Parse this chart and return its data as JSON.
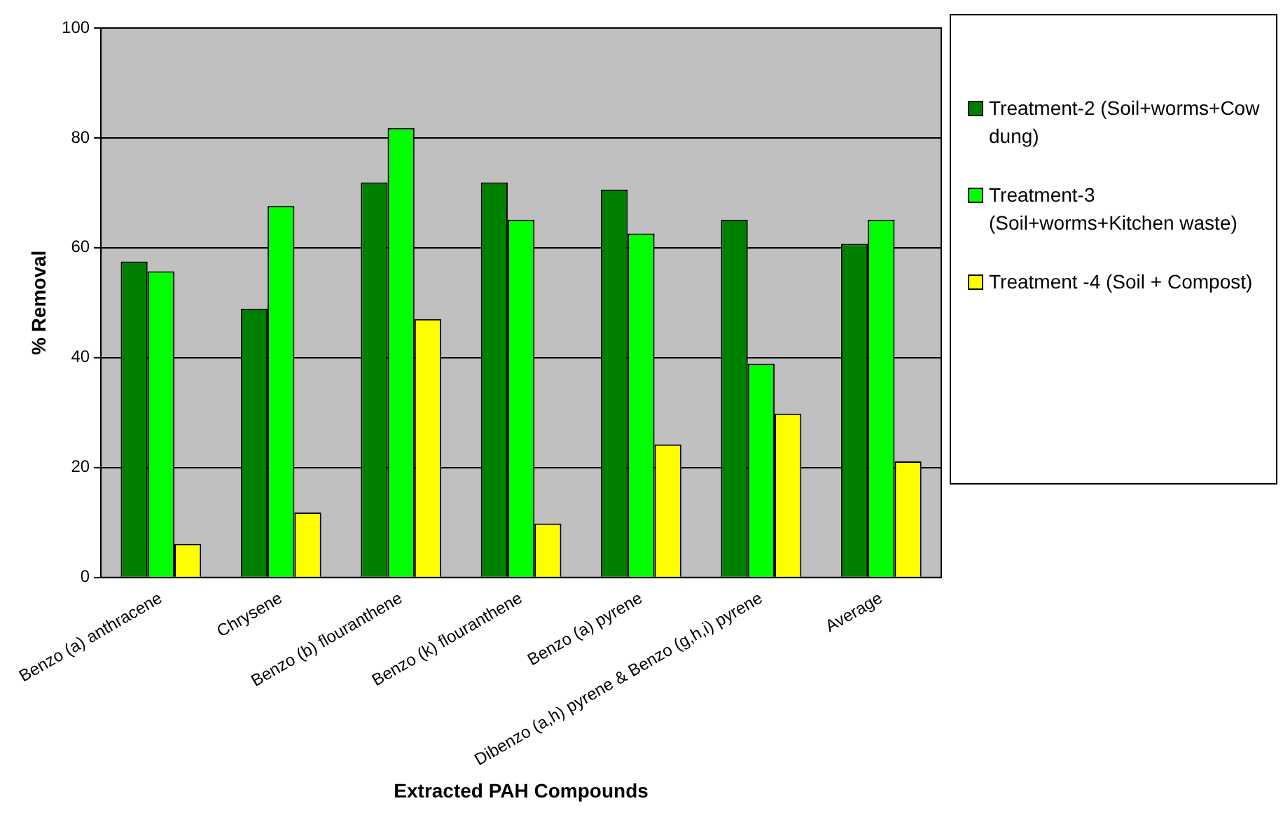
{
  "chart_data": {
    "type": "bar",
    "xlabel": "Extracted PAH Compounds",
    "ylabel": "% Removal",
    "categories": [
      "Benzo (a) anthracene",
      "Chrysene",
      "Benzo (b) flouranthene",
      "Benzo (k) flouranthene",
      "Benzo (a) pyrene",
      "Dibenzo (a,h) pyrene & Benzo (g,h,i) pyrene",
      "Average"
    ],
    "series": [
      {
        "name": "Treatment-2 (Soil+worms+Cow dung)",
        "color": "#008000",
        "values": [
          57.5,
          48.9,
          71.9,
          71.9,
          70.6,
          65.1,
          60.7
        ]
      },
      {
        "name": "Treatment-3 (Soil+worms+Kitchen waste)",
        "color": "#00ff00",
        "values": [
          55.7,
          67.6,
          81.8,
          65.1,
          62.6,
          38.9,
          65.1
        ]
      },
      {
        "name": "Treatment -4 (Soil + Compost)",
        "color": "#ffff00",
        "values": [
          6.1,
          11.8,
          47.0,
          9.8,
          24.2,
          29.8,
          21.1
        ]
      }
    ],
    "ylim": [
      0,
      100
    ],
    "yticks": [
      0,
      20,
      40,
      60,
      80,
      100
    ],
    "grid": "y",
    "legend": "right"
  }
}
